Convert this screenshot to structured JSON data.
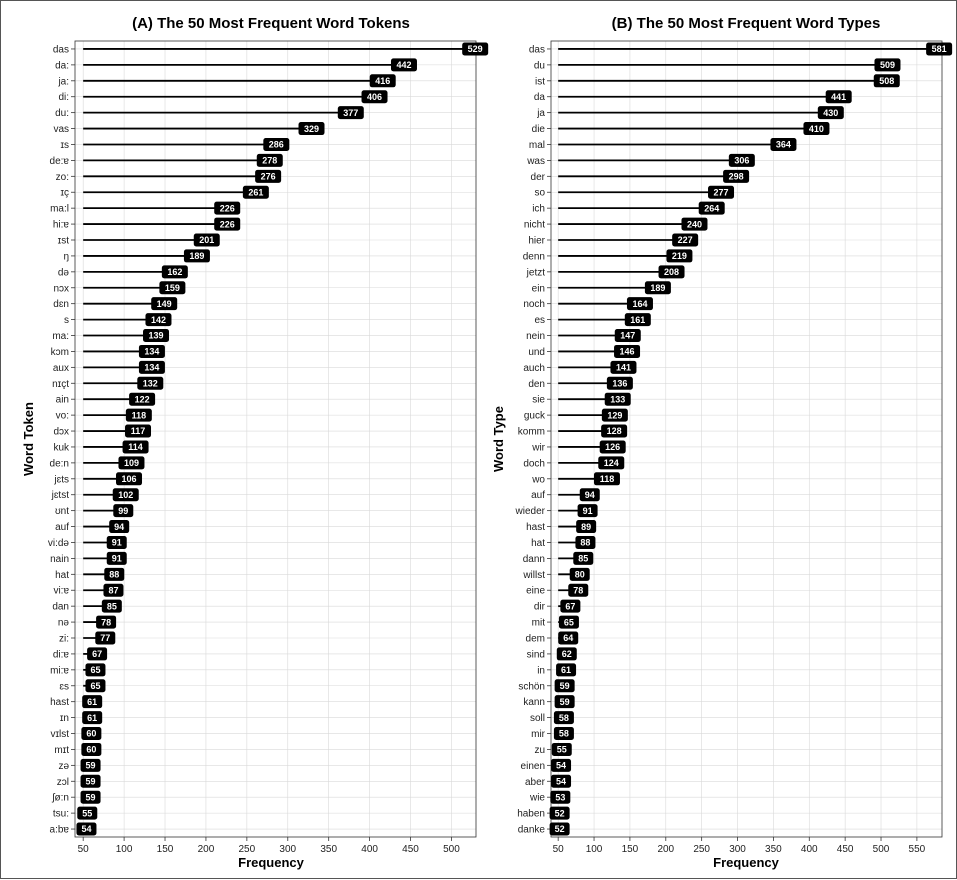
{
  "chart_data": [
    {
      "type": "lollipop",
      "title": "(A) The 50 Most Frequent Word Tokens",
      "xlabel": "Frequency",
      "ylabel": "Word Token",
      "xlim": [
        40,
        530
      ],
      "xticks": [
        50,
        100,
        150,
        200,
        250,
        300,
        350,
        400,
        450,
        500
      ],
      "grid": true,
      "baseline": 50,
      "categories": [
        "das",
        "da:",
        "ja:",
        "di:",
        "du:",
        "vas",
        "ɪs",
        "de:ɐ",
        "zo:",
        "ɪç",
        "ma:l",
        "hi:ɐ",
        "ɪst",
        "ŋ",
        "də",
        "nɔx",
        "dɛn",
        "s",
        "ma:",
        "kɔm",
        "aux",
        "nɪçt",
        "ain",
        "vo:",
        "dɔx",
        "kuk",
        "de:n",
        "jɛts",
        "jɛtst",
        "ʊnt",
        "auf",
        "vi:də",
        "nain",
        "hat",
        "vi:ɐ",
        "dan",
        "nə",
        "zi:",
        "di:ɐ",
        "mi:ɐ",
        "ɛs",
        "hast",
        "ɪn",
        "vɪlst",
        "mɪt",
        "zə",
        "zɔl",
        "ʃø:n",
        "tsu:",
        "a:bɐ"
      ],
      "values": [
        529,
        442,
        416,
        406,
        377,
        329,
        286,
        278,
        276,
        261,
        226,
        226,
        201,
        189,
        162,
        159,
        149,
        142,
        139,
        134,
        134,
        132,
        122,
        118,
        117,
        114,
        109,
        106,
        102,
        99,
        94,
        91,
        91,
        88,
        87,
        85,
        78,
        77,
        67,
        65,
        65,
        61,
        61,
        60,
        60,
        59,
        59,
        59,
        55,
        54
      ]
    },
    {
      "type": "lollipop",
      "title": "(B) The 50 Most Frequent Word Types",
      "xlabel": "Frequency",
      "ylabel": "Word Type",
      "xlim": [
        40,
        585
      ],
      "xticks": [
        50,
        100,
        150,
        200,
        250,
        300,
        350,
        400,
        450,
        500,
        550
      ],
      "grid": true,
      "baseline": 50,
      "categories": [
        "das",
        "du",
        "ist",
        "da",
        "ja",
        "die",
        "mal",
        "was",
        "der",
        "so",
        "ich",
        "nicht",
        "hier",
        "denn",
        "jetzt",
        "ein",
        "noch",
        "es",
        "nein",
        "und",
        "auch",
        "den",
        "sie",
        "guck",
        "komm",
        "wir",
        "doch",
        "wo",
        "auf",
        "wieder",
        "hast",
        "hat",
        "dann",
        "willst",
        "eine",
        "dir",
        "mit",
        "dem",
        "sind",
        "in",
        "schön",
        "kann",
        "soll",
        "mir",
        "zu",
        "einen",
        "aber",
        "wie",
        "haben",
        "danke"
      ],
      "values": [
        581,
        509,
        508,
        441,
        430,
        410,
        364,
        306,
        298,
        277,
        264,
        240,
        227,
        219,
        208,
        189,
        164,
        161,
        147,
        146,
        141,
        136,
        133,
        129,
        128,
        126,
        124,
        118,
        94,
        91,
        89,
        88,
        85,
        80,
        78,
        67,
        65,
        64,
        62,
        61,
        59,
        59,
        58,
        58,
        55,
        54,
        54,
        53,
        52,
        52
      ]
    }
  ]
}
